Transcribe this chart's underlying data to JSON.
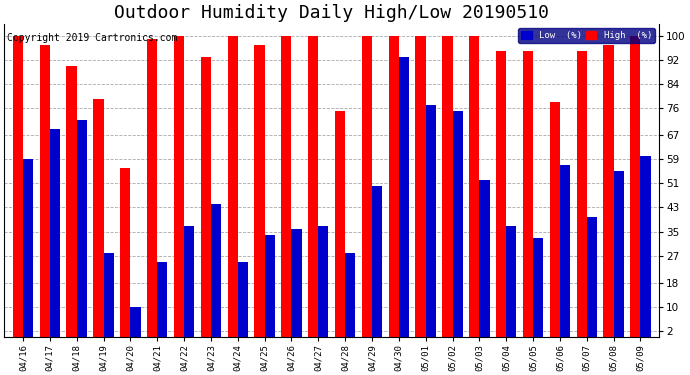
{
  "title": "Outdoor Humidity Daily High/Low 20190510",
  "copyright": "Copyright 2019 Cartronics.com",
  "dates": [
    "04/16",
    "04/17",
    "04/18",
    "04/19",
    "04/20",
    "04/21",
    "04/22",
    "04/23",
    "04/24",
    "04/25",
    "04/26",
    "04/27",
    "04/28",
    "04/29",
    "04/30",
    "05/01",
    "05/02",
    "05/03",
    "05/04",
    "05/05",
    "05/06",
    "05/07",
    "05/08",
    "05/09"
  ],
  "high": [
    100,
    97,
    90,
    79,
    56,
    99,
    100,
    93,
    100,
    97,
    100,
    100,
    75,
    100,
    100,
    100,
    100,
    100,
    95,
    95,
    78,
    95,
    97,
    100
  ],
  "low": [
    59,
    69,
    72,
    28,
    10,
    25,
    37,
    44,
    25,
    34,
    36,
    37,
    28,
    50,
    93,
    77,
    75,
    52,
    37,
    33,
    57,
    40,
    55,
    60
  ],
  "bar_width": 0.38,
  "high_color": "#ff0000",
  "low_color": "#0000cc",
  "bg_color": "#ffffff",
  "grid_color": "#aaaaaa",
  "yticks": [
    2,
    10,
    18,
    27,
    35,
    43,
    51,
    59,
    67,
    76,
    84,
    92,
    100
  ],
  "ylim": [
    0,
    104
  ],
  "legend_low_label": "Low  (%)",
  "legend_high_label": "High  (%)",
  "title_fontsize": 13,
  "copyright_fontsize": 7,
  "figwidth": 6.9,
  "figheight": 3.75,
  "dpi": 100
}
